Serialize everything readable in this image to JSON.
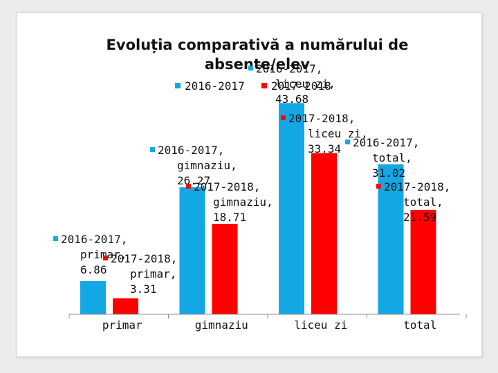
{
  "chart_data": {
    "type": "bar",
    "title": "Evoluția comparativă a numărului de absente/elev",
    "categories": [
      "primar",
      "gimnaziu",
      "liceu zi",
      "total"
    ],
    "series": [
      {
        "name": "2016-2017",
        "values": [
          6.86,
          26.27,
          43.68,
          31.02
        ],
        "color": "#13a8e4"
      },
      {
        "name": "2017-2018",
        "values": [
          3.31,
          18.71,
          33.34,
          21.59
        ],
        "color": "#ff0000"
      }
    ],
    "ylim": [
      0,
      50
    ],
    "grid": false,
    "legend_position": "top-center",
    "xlabel": "",
    "ylabel": ""
  }
}
